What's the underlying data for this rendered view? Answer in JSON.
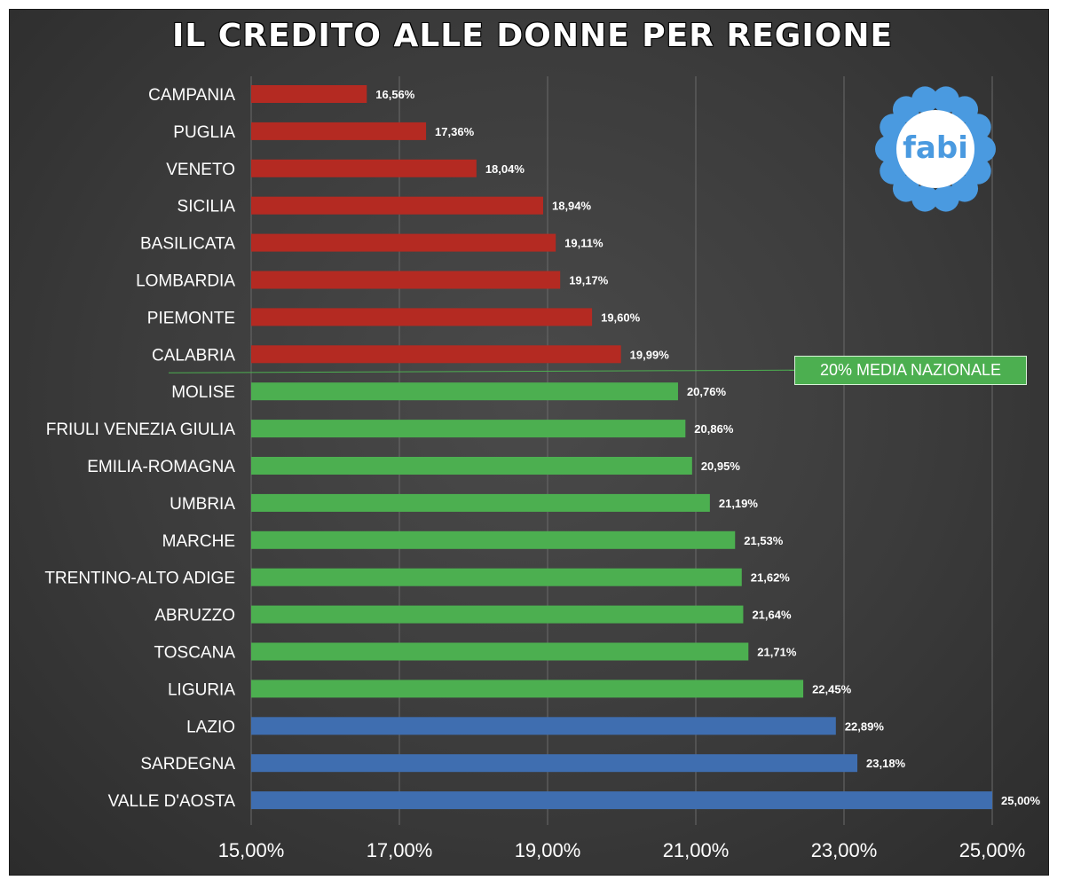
{
  "chart_data": {
    "type": "bar",
    "orientation": "horizontal",
    "title": "IL CREDITO ALLE DONNE PER REGIONE",
    "categories": [
      "CAMPANIA",
      "PUGLIA",
      "VENETO",
      "SICILIA",
      "BASILICATA",
      "LOMBARDIA",
      "PIEMONTE",
      "CALABRIA",
      "MOLISE",
      "FRIULI VENEZIA GIULIA",
      "EMILIA-ROMAGNA",
      "UMBRIA",
      "MARCHE",
      "TRENTINO-ALTO ADIGE",
      "ABRUZZO",
      "TOSCANA",
      "LIGURIA",
      "LAZIO",
      "SARDEGNA",
      "VALLE D'AOSTA"
    ],
    "values": [
      16.56,
      17.36,
      18.04,
      18.94,
      19.11,
      19.17,
      19.6,
      19.99,
      20.76,
      20.86,
      20.95,
      21.19,
      21.53,
      21.62,
      21.64,
      21.71,
      22.45,
      22.89,
      23.18,
      25.0
    ],
    "value_labels": [
      "16,56%",
      "17,36%",
      "18,04%",
      "18,94%",
      "19,11%",
      "19,17%",
      "19,60%",
      "19,99%",
      "20,76%",
      "20,86%",
      "20,95%",
      "21,19%",
      "21,53%",
      "21,62%",
      "21,64%",
      "21,71%",
      "22,45%",
      "22,89%",
      "23,18%",
      "25,00%"
    ],
    "bar_groups": [
      "below",
      "below",
      "below",
      "below",
      "below",
      "below",
      "below",
      "below",
      "above",
      "above",
      "above",
      "above",
      "above",
      "above",
      "above",
      "above",
      "above",
      "top",
      "top",
      "top"
    ],
    "group_colors": {
      "below": "#b42a22",
      "above": "#4caf50",
      "top": "#3f6eb0"
    },
    "xlim": [
      15,
      25
    ],
    "x_ticks": [
      15,
      17,
      19,
      21,
      23,
      25
    ],
    "x_tick_labels": [
      "15,00%",
      "17,00%",
      "19,00%",
      "21,00%",
      "23,00%",
      "25,00%"
    ],
    "grid": true,
    "reference_line": {
      "value": 20,
      "label": "20% MEDIA NAZIONALE",
      "color": "#4caf50"
    },
    "background_color": "#3c3c3c"
  },
  "logo": {
    "text": "fabi",
    "petal_color": "#4a9ae0"
  }
}
